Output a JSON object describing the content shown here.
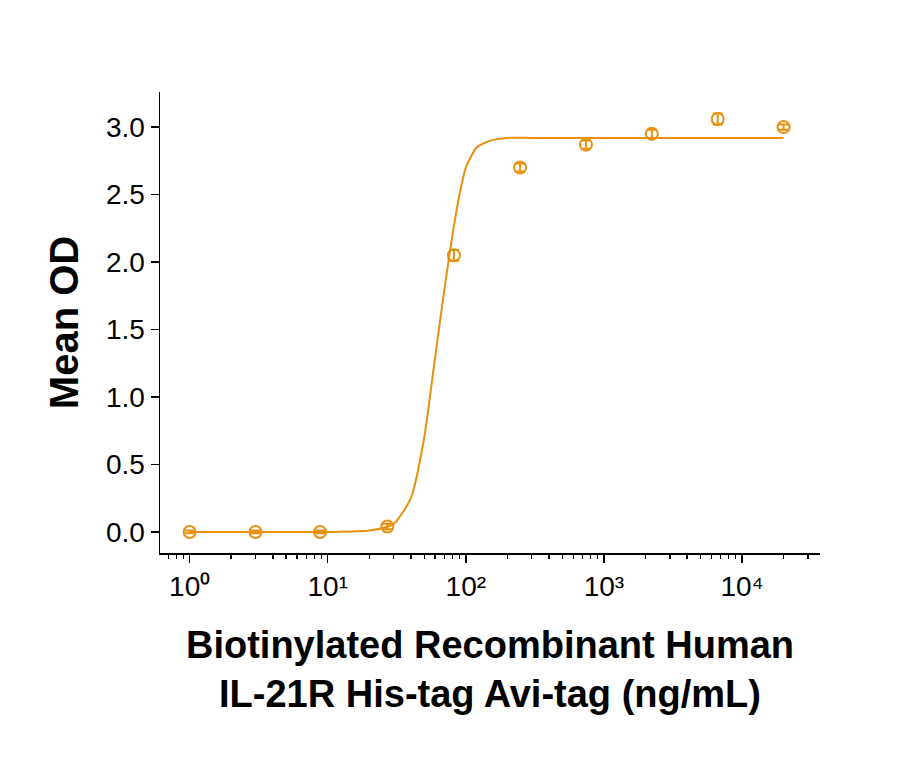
{
  "chart_data": {
    "type": "scatter",
    "xlabel": "Biotinylated Recombinant Human\nIL-21R His-tag Avi-tag (ng/mL)",
    "ylabel": "Mean OD",
    "log": "x",
    "grid": false,
    "legend": "none",
    "xlim": [
      0.61,
      36700
    ],
    "ylim": [
      -0.156,
      3.26
    ],
    "xticks": [
      {
        "value": 1,
        "label": "10⁰"
      },
      {
        "value": 10,
        "label": "10¹"
      },
      {
        "value": 100,
        "label": "10²"
      },
      {
        "value": 1000,
        "label": "10³"
      },
      {
        "value": 10000,
        "label": "10⁴"
      }
    ],
    "yticks": [
      {
        "value": 0,
        "label": "0.0"
      },
      0.5,
      {
        "value": 1,
        "label": "1.0"
      },
      1.5,
      {
        "value": 2,
        "label": "2.0"
      },
      2.5,
      {
        "value": 3,
        "label": "3.0"
      }
    ],
    "series": [
      {
        "type": "scatter",
        "marker": "open circle",
        "color": "#e8900f",
        "x": [
          1,
          3,
          8.8,
          27,
          82,
          247,
          741,
          2222,
          6667,
          20000
        ],
        "values": [
          0.0,
          0.0,
          0.0,
          0.04,
          2.05,
          2.7,
          2.87,
          2.95,
          3.06,
          3.0
        ],
        "errors": [
          0.01,
          0.01,
          0.01,
          0.02,
          0.04,
          0.03,
          0.03,
          0.03,
          0.04,
          0.02
        ]
      },
      {
        "type": "line",
        "line_style": "solid",
        "color": "#e8900f",
        "x": [
          1,
          5,
          10,
          20,
          30,
          40,
          50,
          60,
          70,
          80,
          90,
          100,
          120,
          150,
          200,
          300,
          1000,
          20000
        ],
        "values": [
          0.0,
          0.0,
          0.0,
          0.01,
          0.06,
          0.25,
          0.7,
          1.3,
          1.8,
          2.2,
          2.5,
          2.7,
          2.85,
          2.9,
          2.92,
          2.92,
          2.92,
          2.92
        ]
      }
    ]
  }
}
